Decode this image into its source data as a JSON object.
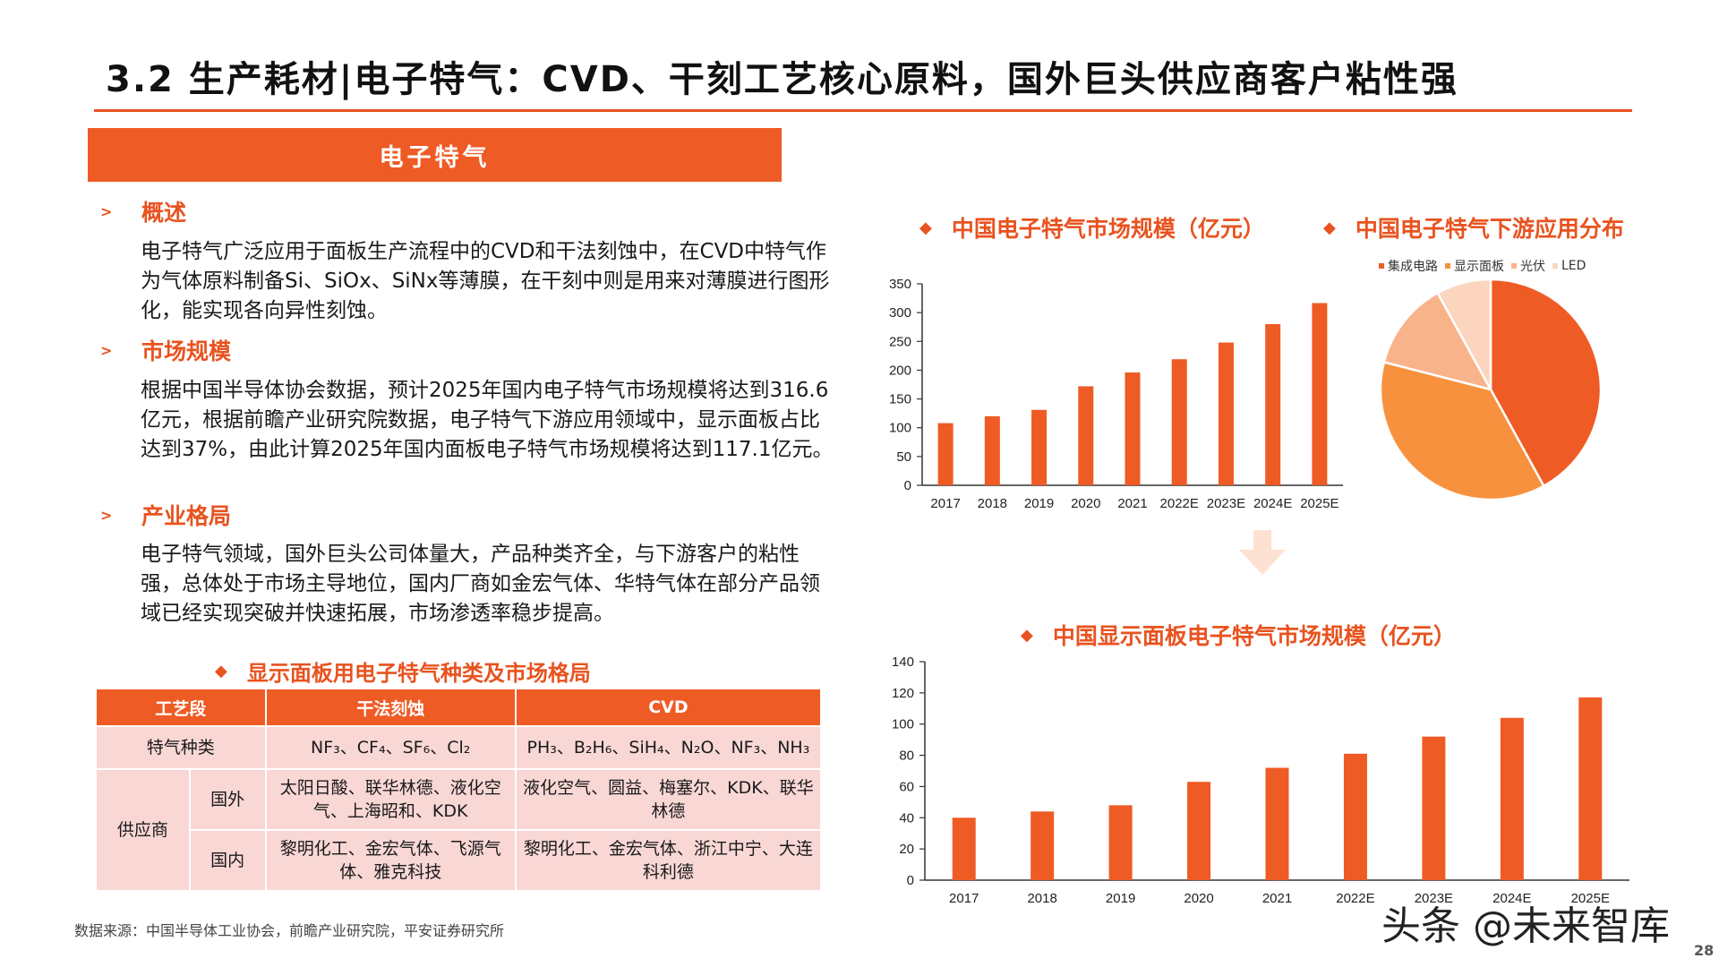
{
  "title": "3.2 生产耗材|电子特气：CVD、干刻工艺核心原料，国外巨头供应商客户粘性强",
  "banner": "电子特气",
  "sections": [
    {
      "heading": "概述",
      "body": "电子特气广泛应用于面板生产流程中的CVD和干法刻蚀中，在CVD中特气作为气体原料制备Si、SiOx、SiNx等薄膜，在干刻中则是用来对薄膜进行图形化，能实现各向异性刻蚀。"
    },
    {
      "heading": "市场规模",
      "body": "根据中国半导体协会数据，预计2025年国内电子特气市场规模将达到316.6亿元，根据前瞻产业研究院数据，电子特气下游应用领域中，显示面板占比达到37%，由此计算2025年国内面板电子特气市场规模将达到117.1亿元。"
    },
    {
      "heading": "产业格局",
      "body": "电子特气领域，国外巨头公司体量大，产品种类齐全，与下游客户的粘性强，总体处于市场主导地位，国内厂商如金宏气体、华特气体在部分产品领域已经实现突破并快速拓展，市场渗透率稳步提高。"
    }
  ],
  "table": {
    "title": "显示面板用电子特气种类及市场格局",
    "headers": [
      "工艺段",
      "干法刻蚀",
      "CVD"
    ],
    "gas_label": "特气种类",
    "gas_dry": "NF₃、CF₄、SF₆、Cl₂",
    "gas_cvd": "PH₃、B₂H₆、SiH₄、N₂O、NF₃、NH₃",
    "supplier_label": "供应商",
    "foreign_label": "国外",
    "foreign_dry": "太阳日酸、联华林德、液化空气、上海昭和、KDK",
    "foreign_cvd": "液化空气、圆益、梅塞尔、KDK、联华林德",
    "domestic_label": "国内",
    "domestic_dry": "黎明化工、金宏气体、飞源气体、雅克科技",
    "domestic_cvd": "黎明化工、金宏气体、浙江中宁、大连科利德"
  },
  "source": "数据来源：中国半导体工业协会，前瞻产业研究院，平安证券研究所",
  "watermark": "头条 @未来智库",
  "page_number": "28",
  "colors": {
    "accent": "#ef5b25",
    "table_body": "#f8d7d5"
  },
  "chart_data": [
    {
      "type": "bar",
      "title": "中国电子特气市场规模（亿元）",
      "categories": [
        "2017",
        "2018",
        "2019",
        "2020",
        "2021",
        "2022E",
        "2023E",
        "2024E",
        "2025E"
      ],
      "values": [
        108,
        120,
        131,
        172,
        196,
        219,
        248,
        280,
        316.6
      ],
      "ylim": [
        0,
        350
      ],
      "yticks": [
        0,
        50,
        100,
        150,
        200,
        250,
        300,
        350
      ],
      "color": "#ef5b25"
    },
    {
      "type": "pie",
      "title": "中国电子特气下游应用分布",
      "labels": [
        "集成电路",
        "显示面板",
        "光伏",
        "LED"
      ],
      "values": [
        42,
        37,
        13,
        8
      ],
      "colors": [
        "#ef5b25",
        "#f7913e",
        "#f9b38a",
        "#fbd5bd"
      ]
    },
    {
      "type": "bar",
      "title": "中国显示面板电子特气市场规模（亿元）",
      "categories": [
        "2017",
        "2018",
        "2019",
        "2020",
        "2021",
        "2022E",
        "2023E",
        "2024E",
        "2025E"
      ],
      "values": [
        40,
        44,
        48,
        63,
        72,
        81,
        92,
        104,
        117.1
      ],
      "ylim": [
        0,
        140
      ],
      "yticks": [
        0,
        20,
        40,
        60,
        80,
        100,
        120,
        140
      ],
      "color": "#ef5b25"
    }
  ]
}
